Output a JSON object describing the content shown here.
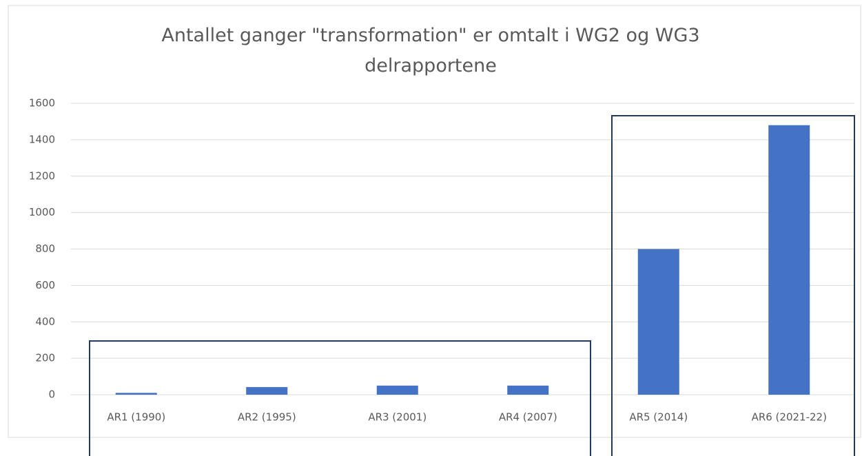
{
  "chart_data": {
    "type": "bar",
    "title": "Antallet ganger \"transformation\" er omtalt i WG2 og WG3 delrapportene",
    "categories": [
      "AR1 (1990)",
      "AR2 (1995)",
      "AR3 (2001)",
      "AR4 (2007)",
      "AR5 (2014)",
      "AR6 (2021-22)"
    ],
    "values": [
      10,
      42,
      50,
      50,
      800,
      1480
    ],
    "color": "#4472c4",
    "ylim": [
      0,
      1600
    ],
    "yticks": [
      0,
      200,
      400,
      600,
      800,
      1000,
      1200,
      1400,
      1600
    ],
    "grid": true
  }
}
